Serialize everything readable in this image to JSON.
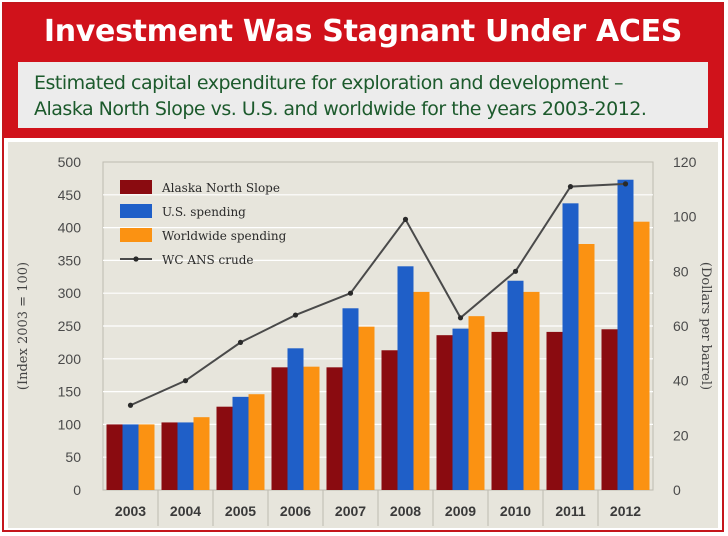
{
  "header": {
    "title": "Investment Was Stagnant Under ACES",
    "subtitle_line1": "Estimated capital expenditure for exploration and development –",
    "subtitle_line2": "Alaska North Slope vs. U.S. and worldwide for the years 2003-2012."
  },
  "colors": {
    "banner": "#d0121b",
    "subtitle_text": "#1c5a2c",
    "plot_bg": "#e7e5dc",
    "alaska": "#8a0b10",
    "us": "#1f5fc8",
    "world": "#fb9212",
    "crude": "#4a4a4a"
  },
  "chart_data": {
    "type": "bar",
    "title": "",
    "xlabel": "",
    "ylabel": "(Index 2003 = 100)",
    "ylabel_right": "(Dollars per barrel)",
    "ylim": [
      0,
      500
    ],
    "ylim_right": [
      0,
      120
    ],
    "yticks": [
      "0",
      "50",
      "100",
      "150",
      "200",
      "250",
      "300",
      "350",
      "400",
      "450",
      "500"
    ],
    "yticks_right": [
      "0",
      "20",
      "40",
      "60",
      "80",
      "100",
      "120"
    ],
    "grid": true,
    "legend_position": "top-left",
    "categories": [
      "2003",
      "2004",
      "2005",
      "2006",
      "2007",
      "2008",
      "2009",
      "2010",
      "2011",
      "2012"
    ],
    "series": [
      {
        "name": "Alaska North Slope",
        "kind": "bar",
        "color": "#8a0b10",
        "values": [
          100,
          103,
          127,
          187,
          187,
          213,
          236,
          241,
          241,
          245
        ]
      },
      {
        "name": "U.S. spending",
        "kind": "bar",
        "color": "#1f5fc8",
        "values": [
          100,
          103,
          142,
          216,
          277,
          341,
          246,
          319,
          437,
          473
        ]
      },
      {
        "name": "Worldwide spending",
        "kind": "bar",
        "color": "#fb9212",
        "values": [
          100,
          111,
          146,
          188,
          249,
          302,
          265,
          302,
          375,
          409
        ]
      },
      {
        "name": "WC ANS crude",
        "kind": "line",
        "axis": "right",
        "color": "#4a4a4a",
        "values": [
          31,
          40,
          54,
          64,
          72,
          99,
          63,
          80,
          111,
          112
        ]
      }
    ]
  }
}
